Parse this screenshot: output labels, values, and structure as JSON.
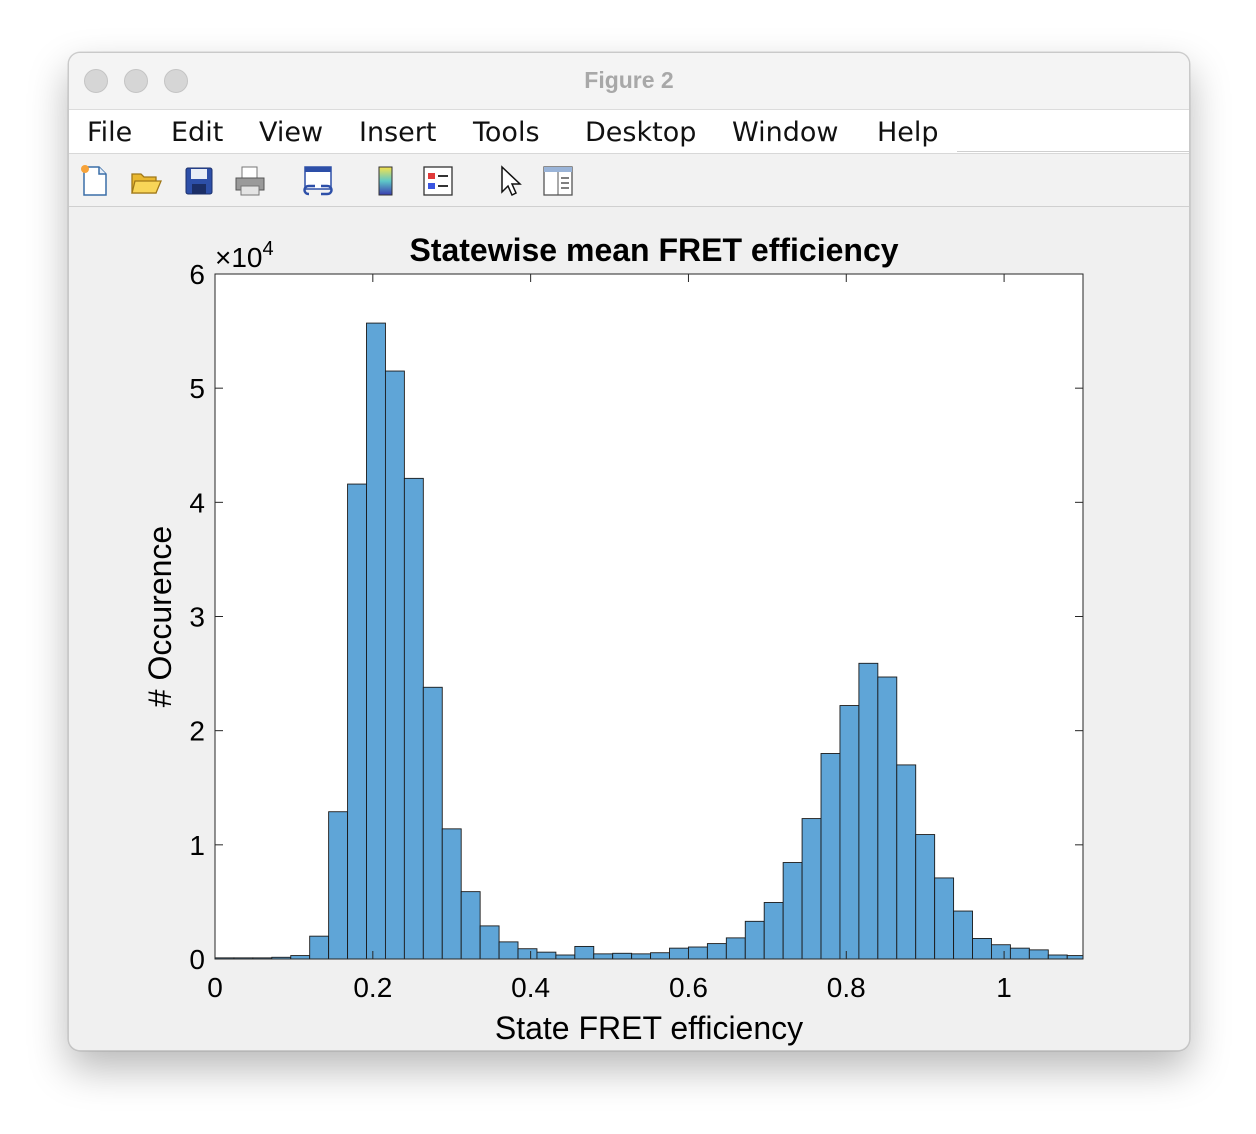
{
  "window": {
    "title": "Figure 2"
  },
  "menu": {
    "items": [
      "File",
      "Edit",
      "View",
      "Insert",
      "Tools",
      "Desktop",
      "Window",
      "Help"
    ]
  },
  "toolbar": {
    "icons": [
      "new-figure-icon",
      "open-file-icon",
      "save-icon",
      "print-icon",
      "link-plot-icon",
      "colorbar-icon",
      "legend-icon",
      "pointer-icon",
      "property-editor-icon"
    ]
  },
  "chart_data": {
    "type": "bar",
    "title": "Statewise mean FRET efficiency",
    "xlabel": "State FRET efficiency",
    "ylabel": "# Occurence",
    "y_exponent_base": "×10",
    "y_exponent_power": "4",
    "xlim": [
      0,
      1.1
    ],
    "ylim": [
      0,
      60000
    ],
    "xticks": [
      0,
      0.2,
      0.4,
      0.6,
      0.8,
      1
    ],
    "xtick_labels": [
      "0",
      "0.2",
      "0.4",
      "0.6",
      "0.8",
      "1"
    ],
    "yticks": [
      0,
      10000,
      20000,
      30000,
      40000,
      50000,
      60000
    ],
    "ytick_labels": [
      "0",
      "1",
      "2",
      "3",
      "4",
      "5",
      "6"
    ],
    "bin_width": 0.024,
    "bin_start": 0.0,
    "bar_color": "#5fa5d7",
    "values": [
      100,
      100,
      100,
      150,
      300,
      2000,
      12900,
      41600,
      55700,
      51500,
      42100,
      23800,
      11400,
      5900,
      2900,
      1500,
      900,
      600,
      350,
      1100,
      450,
      500,
      450,
      550,
      950,
      1050,
      1350,
      1850,
      3300,
      4950,
      8450,
      12300,
      18000,
      22200,
      25900,
      24700,
      17000,
      10900,
      7100,
      4200,
      1800,
      1250,
      950,
      800,
      350,
      300,
      400
    ]
  }
}
